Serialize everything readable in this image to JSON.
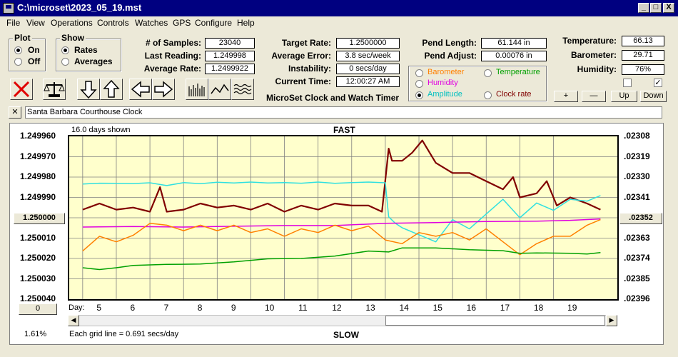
{
  "window": {
    "title": "C:\\microset\\2023_05_19.mst",
    "minimize": "_",
    "maximize": "□",
    "close": "X"
  },
  "menu": [
    "File",
    "View",
    "Operations",
    "Controls",
    "Watches",
    "GPS",
    "Configure",
    "Help"
  ],
  "plot_group": {
    "label": "Plot",
    "options": [
      "On",
      "Off"
    ],
    "selected": "On"
  },
  "show_group": {
    "label": "Show",
    "options": [
      "Rates",
      "Averages"
    ],
    "selected": "Rates"
  },
  "stats": {
    "samples_label": "# of Samples:",
    "samples": "23040",
    "last_label": "Last Reading:",
    "last": "1.249998",
    "avg_rate_label": "Average Rate:",
    "avg_rate": "1.2499922",
    "target_label": "Target Rate:",
    "target": "1.2500000",
    "avg_error_label": "Average Error:",
    "avg_error": "3.8 sec/week",
    "instability_label": "Instability:",
    "instability": "0 secs/day",
    "current_time_label": "Current Time:",
    "current_time": "12:00:27 AM",
    "pend_length_label": "Pend Length:",
    "pend_length": "61.144 in",
    "pend_adjust_label": "Pend Adjust:",
    "pend_adjust": "0.00076 in",
    "temperature_label": "Temperature:",
    "temperature": "66.13",
    "barometer_label": "Barometer:",
    "barometer": "29.71",
    "humidity_label": "Humidity:",
    "humidity": "76%"
  },
  "app_caption": "MicroSet Clock and Watch Timer",
  "right_series_options": [
    {
      "label": "Barometer",
      "color": "#ff8000",
      "selected": false
    },
    {
      "label": "Temperature",
      "color": "#00a000",
      "selected": false
    },
    {
      "label": "Humidity",
      "color": "#e000e0",
      "selected": false
    },
    {
      "label": "Amplitude",
      "color": "#00c0c0",
      "selected": true
    },
    {
      "label": "Clock rate",
      "color": "#800000",
      "selected": false
    }
  ],
  "scale_buttons": {
    "plus": "+",
    "minus": "—",
    "up": "Up",
    "down": "Down"
  },
  "checkboxes": [
    {
      "checked": false,
      "mark": ""
    },
    {
      "checked": true,
      "mark": "✓"
    }
  ],
  "note_close": "✕",
  "clock_name": "Santa Barbara Courthouse Clock",
  "chart_data": {
    "type": "line",
    "title": "FAST",
    "bottom_label": "SLOW",
    "days_shown": "16.0 days shown",
    "grid_note": "Each grid line = 0.691 secs/day",
    "percent": "1.61%",
    "xlabel": "Day:",
    "x_ticks": [
      "5",
      "6",
      "7",
      "8",
      "9",
      "10",
      "11",
      "12",
      "13",
      "14",
      "15",
      "16",
      "17",
      "18",
      "19"
    ],
    "x_range": [
      4.1,
      20.4
    ],
    "y_left_ticks": [
      "1.249960",
      "1.249970",
      "1.249980",
      "1.249990",
      "1.250000",
      "1.250010",
      "1.250020",
      "1.250030",
      "1.250040"
    ],
    "y_left_range": [
      1.24996,
      1.25004
    ],
    "y_left_center_button": "1.250000",
    "y_right_ticks": [
      ".02308",
      ".02319",
      ".02330",
      ".02341",
      ".02352",
      ".02363",
      ".02374",
      ".02385",
      ".02396"
    ],
    "y_right_center_button": ".02352",
    "left_button": "0",
    "series": [
      {
        "name": "Clock rate",
        "color": "#800000",
        "axis": "left",
        "x": [
          4.5,
          5.0,
          5.5,
          6.0,
          6.5,
          6.8,
          7.0,
          7.5,
          8.0,
          8.5,
          9.0,
          9.5,
          10.0,
          10.5,
          11.0,
          11.5,
          12.0,
          12.5,
          13.0,
          13.4,
          13.6,
          13.7,
          14.0,
          14.3,
          14.6,
          15.0,
          15.5,
          16.0,
          16.5,
          17.0,
          17.3,
          17.5,
          18.0,
          18.3,
          18.6,
          19.0,
          19.5,
          19.9
        ],
        "y": [
          1.249996,
          1.249993,
          1.249996,
          1.249995,
          1.249997,
          1.249985,
          1.249997,
          1.249996,
          1.249993,
          1.249995,
          1.249994,
          1.249996,
          1.249993,
          1.249997,
          1.249994,
          1.249996,
          1.249993,
          1.249994,
          1.249994,
          1.249997,
          1.249966,
          1.249972,
          1.249972,
          1.249968,
          1.249962,
          1.249973,
          1.249978,
          1.249978,
          1.249982,
          1.249986,
          1.24998,
          1.24999,
          1.249988,
          1.249982,
          1.249994,
          1.24999,
          1.249993,
          1.249996
        ]
      },
      {
        "name": "Amplitude",
        "color": "#30e0e0",
        "axis": "right",
        "x": [
          4.5,
          5.0,
          5.5,
          6.0,
          6.5,
          6.8,
          7.0,
          7.5,
          8.0,
          8.5,
          9.0,
          9.5,
          10.0,
          10.5,
          11.0,
          11.5,
          12.0,
          12.5,
          13.0,
          13.5,
          13.6,
          13.8,
          14.0,
          14.5,
          15.0,
          15.5,
          16.0,
          16.5,
          17.0,
          17.5,
          18.0,
          18.5,
          19.0,
          19.5,
          19.9
        ],
        "y": [
          0.023338,
          0.023333,
          0.023334,
          0.023335,
          0.023331,
          0.02334,
          0.023346,
          0.02333,
          0.023336,
          0.023328,
          0.023332,
          0.023327,
          0.023332,
          0.02333,
          0.023333,
          0.023327,
          0.023334,
          0.02333,
          0.023327,
          0.023331,
          0.023515,
          0.02355,
          0.023574,
          0.023612,
          0.02365,
          0.02353,
          0.02358,
          0.0235,
          0.02342,
          0.02352,
          0.02344,
          0.02348,
          0.02342,
          0.02343,
          0.0234
        ]
      },
      {
        "name": "Humidity",
        "color": "#e000e0",
        "axis": "right",
        "x": [
          4.5,
          6.0,
          7.5,
          9.0,
          10.5,
          12.0,
          13.5,
          15.0,
          16.5,
          18.0,
          19.0,
          19.9
        ],
        "y": [
          0.02357,
          0.023567,
          0.02357,
          0.023566,
          0.023562,
          0.023562,
          0.02355,
          0.023546,
          0.02354,
          0.023538,
          0.023534,
          0.023526
        ]
      },
      {
        "name": "Barometer",
        "color": "#ff8000",
        "axis": "right",
        "x": [
          4.5,
          5.0,
          5.5,
          6.0,
          6.5,
          7.0,
          7.5,
          8.0,
          8.5,
          9.0,
          9.5,
          10.0,
          10.5,
          11.0,
          11.5,
          12.0,
          12.5,
          13.0,
          13.5,
          14.0,
          14.5,
          15.0,
          15.5,
          16.0,
          16.5,
          17.0,
          17.5,
          18.0,
          18.5,
          19.0,
          19.5,
          19.9
        ],
        "y": [
          0.0237,
          0.02362,
          0.02365,
          0.023615,
          0.02355,
          0.02356,
          0.02359,
          0.02356,
          0.02359,
          0.02356,
          0.0236,
          0.02358,
          0.02362,
          0.02358,
          0.0236,
          0.02356,
          0.02359,
          0.023565,
          0.02364,
          0.02366,
          0.0236,
          0.02362,
          0.0236,
          0.02364,
          0.02358,
          0.02365,
          0.02372,
          0.02366,
          0.02362,
          0.02362,
          0.02356,
          0.02353
        ]
      },
      {
        "name": "Temperature",
        "color": "#00a000",
        "axis": "right",
        "x": [
          4.5,
          5.0,
          5.5,
          6.0,
          7.0,
          8.0,
          9.0,
          10.0,
          11.0,
          12.0,
          13.0,
          13.6,
          14.0,
          15.0,
          16.0,
          17.0,
          17.5,
          18.0,
          19.0,
          19.5,
          19.9
        ],
        "y": [
          0.02379,
          0.0238,
          0.02379,
          0.023778,
          0.023772,
          0.02377,
          0.023758,
          0.023742,
          0.02374,
          0.023727,
          0.0237,
          0.023705,
          0.023683,
          0.023683,
          0.023693,
          0.023698,
          0.023712,
          0.02371,
          0.023712,
          0.023716,
          0.023708
        ]
      }
    ],
    "grid": true
  }
}
